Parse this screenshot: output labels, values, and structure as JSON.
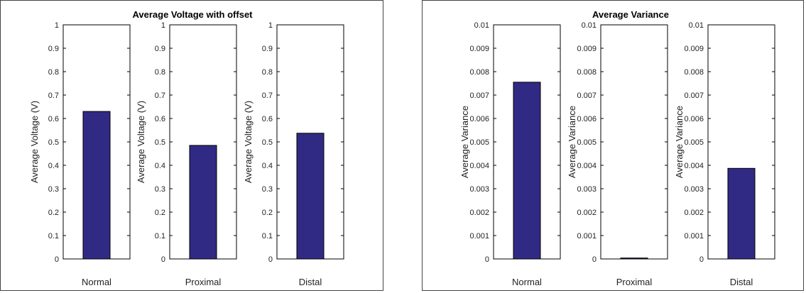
{
  "panels": [
    {
      "title": "Average Voltage with offset",
      "ylabel": "Average Voltage (V)",
      "ylim": [
        0,
        1
      ],
      "ticks": [
        "0",
        "0.1",
        "0.2",
        "0.3",
        "0.4",
        "0.5",
        "0.6",
        "0.7",
        "0.8",
        "0.9",
        "1"
      ],
      "subplots": [
        {
          "category": "Normal",
          "value": 0.63
        },
        {
          "category": "Proximal",
          "value": 0.485
        },
        {
          "category": "Distal",
          "value": 0.537
        }
      ]
    },
    {
      "title": "Average Variance",
      "ylabel": "Average Variance",
      "ylim": [
        0,
        0.01
      ],
      "ticks": [
        "0",
        "0.001",
        "0.002",
        "0.003",
        "0.004",
        "0.005",
        "0.006",
        "0.007",
        "0.008",
        "0.009",
        "0.01"
      ],
      "subplots": [
        {
          "category": "Normal",
          "value": 0.00755
        },
        {
          "category": "Proximal",
          "value": 4e-05
        },
        {
          "category": "Distal",
          "value": 0.00387
        }
      ]
    }
  ],
  "colors": {
    "bar": "#312a84",
    "axis": "#000000"
  },
  "chart_data": [
    {
      "type": "bar",
      "title": "Average Voltage with offset",
      "ylabel": "Average Voltage (V)",
      "categories": [
        "Normal",
        "Proximal",
        "Distal"
      ],
      "values": [
        0.63,
        0.485,
        0.537
      ],
      "ylim": [
        0,
        1
      ],
      "grid": false
    },
    {
      "type": "bar",
      "title": "Average Variance",
      "ylabel": "Average Variance",
      "categories": [
        "Normal",
        "Proximal",
        "Distal"
      ],
      "values": [
        0.00755,
        4e-05,
        0.00387
      ],
      "ylim": [
        0,
        0.01
      ],
      "grid": false
    }
  ]
}
